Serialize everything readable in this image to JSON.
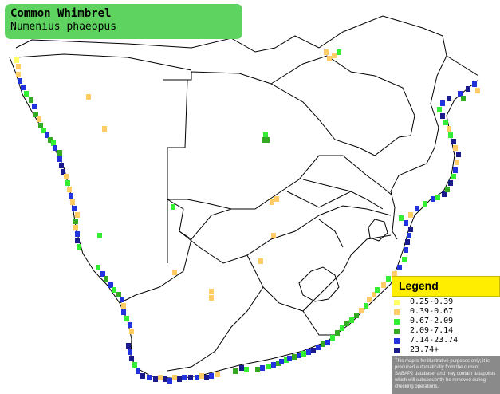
{
  "header": {
    "common_name": "Common Whimbrel",
    "scientific_name": "Numenius phaeopus",
    "color": "#5fd35f"
  },
  "legend": {
    "title": "Legend",
    "header_color": "#ffee00",
    "items": [
      {
        "label": "0.25-0.39",
        "color": "#ffff66"
      },
      {
        "label": "0.39-0.67",
        "color": "#ffcc66"
      },
      {
        "label": "0.67-2.09",
        "color": "#33ee33"
      },
      {
        "label": "2.09-7.14",
        "color": "#33aa22"
      },
      {
        "label": "7.14-23.74",
        "color": "#2233dd"
      },
      {
        "label": "23.74+",
        "color": "#1a1a8c"
      }
    ],
    "disclaimer": "This map is for illustrative purposes only; it is produced automatically from the current SABAP2 database, and may contain datapoints which will subsequently be removed during checking operations."
  }
}
